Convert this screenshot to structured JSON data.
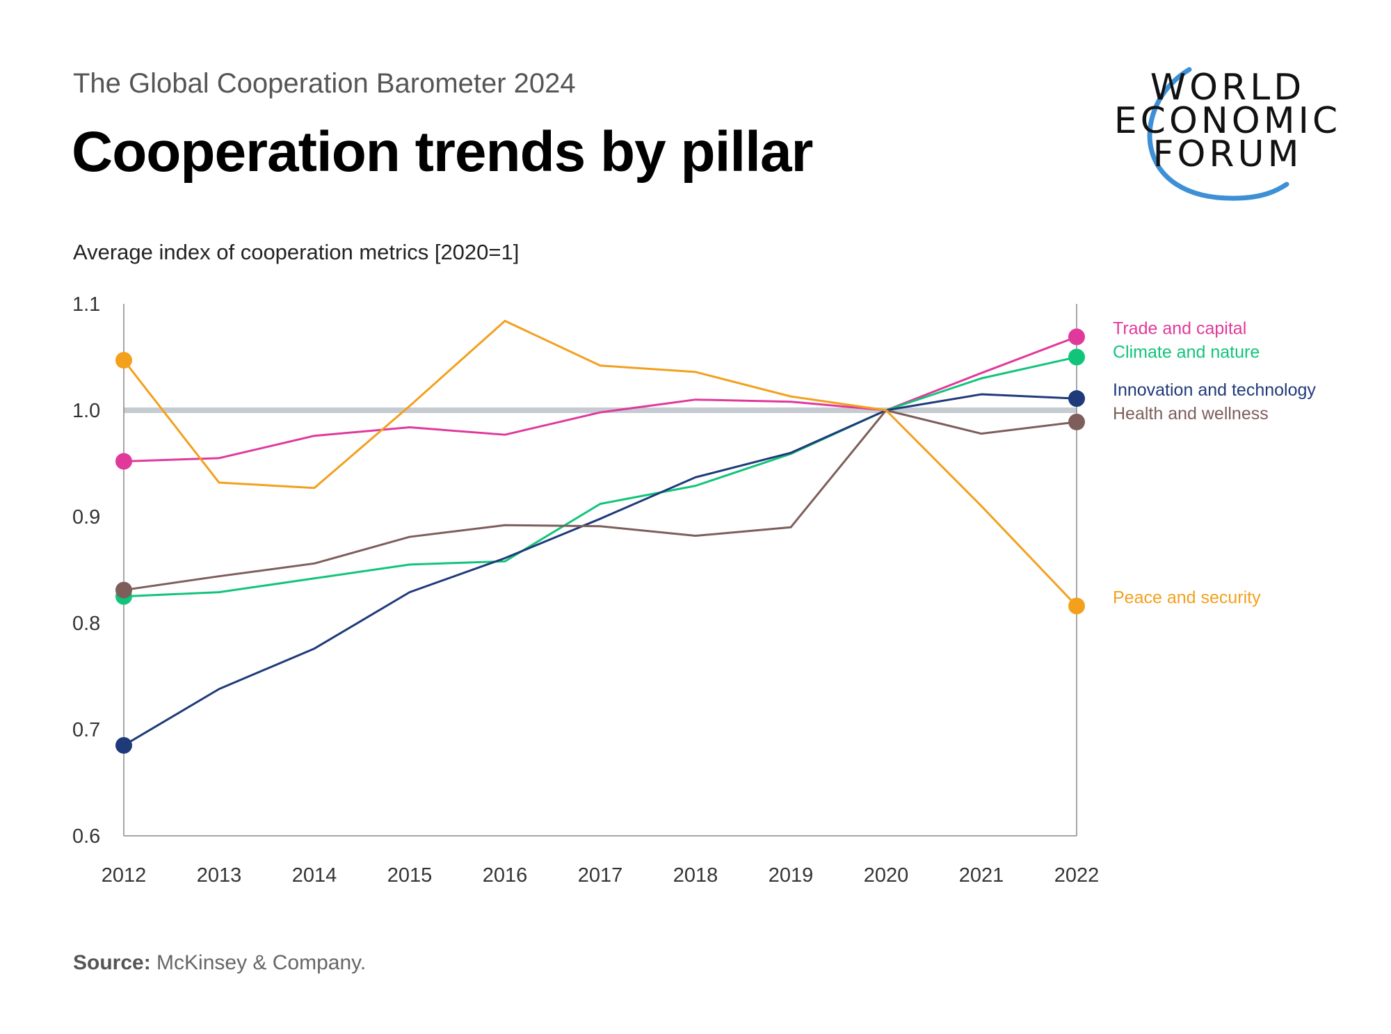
{
  "header": {
    "subtitle": "The Global Cooperation Barometer 2024",
    "title": "Cooperation trends by pillar"
  },
  "logo": {
    "lines": [
      "WORLD",
      "ECONOMIC",
      "FORUM"
    ],
    "arc_color": "#3d8fd6"
  },
  "footer": {
    "source_label": "Source:",
    "source_text": " McKinsey & Company."
  },
  "chart_data": {
    "type": "line",
    "title": "Cooperation trends by pillar",
    "ylabel": "Average index of cooperation metrics [2020=1]",
    "xlabel": "",
    "x": [
      "2012",
      "2013",
      "2014",
      "2015",
      "2016",
      "2017",
      "2018",
      "2019",
      "2020",
      "2021",
      "2022"
    ],
    "ylim": [
      0.6,
      1.1
    ],
    "yticks": [
      "0.6",
      "0.7",
      "0.8",
      "0.9",
      "1.0",
      "1.1"
    ],
    "reference_line": 1.0,
    "reference_color": "#c5cbd1",
    "grid": false,
    "legend": "right, at line ends",
    "series": [
      {
        "name": "Trade and capital",
        "color": "#e0399b",
        "values": [
          0.952,
          0.955,
          0.976,
          0.984,
          0.977,
          0.998,
          1.01,
          1.008,
          1.0,
          1.035,
          1.069
        ]
      },
      {
        "name": "Climate and nature",
        "color": "#12c47a",
        "values": [
          0.825,
          0.829,
          0.842,
          0.855,
          0.858,
          0.912,
          0.929,
          0.959,
          1.0,
          1.03,
          1.05
        ]
      },
      {
        "name": "Innovation and technology",
        "color": "#1f3a7a",
        "values": [
          0.685,
          0.738,
          0.776,
          0.829,
          0.861,
          0.898,
          0.937,
          0.96,
          1.0,
          1.015,
          1.011
        ]
      },
      {
        "name": "Health and wellness",
        "color": "#7d5e5a",
        "values": [
          0.831,
          0.844,
          0.856,
          0.881,
          0.892,
          0.891,
          0.882,
          0.89,
          1.0,
          0.978,
          0.989
        ]
      },
      {
        "name": "Peace and security",
        "color": "#f3a01d",
        "values": [
          1.047,
          0.932,
          0.927,
          1.004,
          1.084,
          1.042,
          1.036,
          1.013,
          1.0,
          0.91,
          0.816
        ]
      }
    ]
  }
}
